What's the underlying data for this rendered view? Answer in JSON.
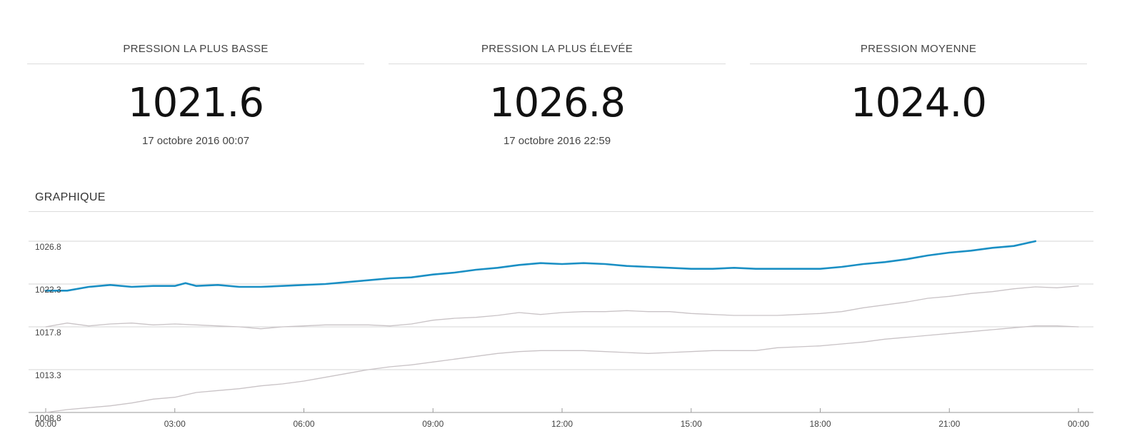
{
  "stats": [
    {
      "title": "PRESSION LA PLUS BASSE",
      "value": "1021.6",
      "date": "17 octobre 2016 00:07"
    },
    {
      "title": "PRESSION LA PLUS ÉLEVÉE",
      "value": "1026.8",
      "date": "17 octobre 2016 22:59"
    },
    {
      "title": "PRESSION MOYENNE",
      "value": "1024.0",
      "date": ""
    }
  ],
  "section_title": "GRAPHIQUE",
  "chart_data": {
    "type": "line",
    "ylim": [
      1008.8,
      1026.8
    ],
    "yticks": [
      "1026.8",
      "1022.3",
      "1017.8",
      "1013.3",
      "1008.8"
    ],
    "ytick_values": [
      1026.8,
      1022.3,
      1017.8,
      1013.3,
      1008.8
    ],
    "xlim": [
      0,
      24
    ],
    "xticks": [
      "00:00",
      "03:00",
      "06:00",
      "09:00",
      "12:00",
      "15:00",
      "18:00",
      "21:00",
      "00:00"
    ],
    "xtick_values": [
      0,
      3,
      6,
      9,
      12,
      15,
      18,
      21,
      24
    ],
    "grid": true,
    "colors": {
      "main": "#1a8fc4",
      "secondary": "#c9c3c6"
    },
    "series": [
      {
        "x": [
          0,
          0.5,
          1,
          1.5,
          2,
          2.5,
          3,
          3.25,
          3.5,
          4,
          4.5,
          5,
          5.5,
          6,
          6.5,
          7,
          7.5,
          8,
          8.5,
          9,
          9.5,
          10,
          10.5,
          11,
          11.5,
          12,
          12.5,
          13,
          13.5,
          14,
          14.5,
          15,
          15.5,
          16,
          16.5,
          17,
          17.5,
          18,
          18.5,
          19,
          19.5,
          20,
          20.5,
          21,
          21.5,
          22,
          22.5,
          23
        ],
        "y": [
          1021.6,
          1021.6,
          1022.0,
          1022.2,
          1022.0,
          1022.1,
          1022.1,
          1022.4,
          1022.1,
          1022.2,
          1022.0,
          1022.0,
          1022.1,
          1022.2,
          1022.3,
          1022.5,
          1022.7,
          1022.9,
          1023.0,
          1023.3,
          1023.5,
          1023.8,
          1024.0,
          1024.3,
          1024.5,
          1024.4,
          1024.5,
          1024.4,
          1024.2,
          1024.1,
          1024.0,
          1023.9,
          1023.9,
          1024.0,
          1023.9,
          1023.9,
          1023.9,
          1023.9,
          1024.1,
          1024.4,
          1024.6,
          1024.9,
          1025.3,
          1025.6,
          1025.8,
          1026.1,
          1026.3,
          1026.8
        ]
      },
      {
        "x": [
          0,
          0.5,
          1,
          1.5,
          2,
          2.5,
          3,
          3.5,
          4,
          4.5,
          5,
          5.5,
          6,
          6.5,
          7,
          7.5,
          8,
          8.5,
          9,
          9.5,
          10,
          10.5,
          11,
          11.5,
          12,
          12.5,
          13,
          13.5,
          14,
          14.5,
          15,
          15.5,
          16,
          16.5,
          17,
          17.5,
          18,
          18.5,
          19,
          19.5,
          20,
          20.5,
          21,
          21.5,
          22,
          22.5,
          23,
          23.5,
          24
        ],
        "y": [
          1017.8,
          1018.2,
          1017.9,
          1018.1,
          1018.2,
          1018.0,
          1018.1,
          1018.0,
          1017.9,
          1017.8,
          1017.6,
          1017.8,
          1017.9,
          1018.0,
          1018.0,
          1018.0,
          1017.9,
          1018.1,
          1018.5,
          1018.7,
          1018.8,
          1019.0,
          1019.3,
          1019.1,
          1019.3,
          1019.4,
          1019.4,
          1019.5,
          1019.4,
          1019.4,
          1019.2,
          1019.1,
          1019.0,
          1019.0,
          1019.0,
          1019.1,
          1019.2,
          1019.4,
          1019.8,
          1020.1,
          1020.4,
          1020.8,
          1021.0,
          1021.3,
          1021.5,
          1021.8,
          1022.0,
          1021.9,
          1022.1
        ]
      },
      {
        "x": [
          0,
          0.5,
          1,
          1.5,
          2,
          2.5,
          3,
          3.5,
          4,
          4.5,
          5,
          5.5,
          6,
          6.5,
          7,
          7.5,
          8,
          8.5,
          9,
          9.5,
          10,
          10.5,
          11,
          11.5,
          12,
          12.5,
          13,
          13.5,
          14,
          14.5,
          15,
          15.5,
          16,
          16.5,
          17,
          17.5,
          18,
          18.5,
          19,
          19.5,
          20,
          20.5,
          21,
          21.5,
          22,
          22.5,
          23,
          23.5,
          24
        ],
        "y": [
          1008.8,
          1009.1,
          1009.3,
          1009.5,
          1009.8,
          1010.2,
          1010.4,
          1010.9,
          1011.1,
          1011.3,
          1011.6,
          1011.8,
          1012.1,
          1012.5,
          1012.9,
          1013.3,
          1013.6,
          1013.8,
          1014.1,
          1014.4,
          1014.7,
          1015.0,
          1015.2,
          1015.3,
          1015.3,
          1015.3,
          1015.2,
          1015.1,
          1015.0,
          1015.1,
          1015.2,
          1015.3,
          1015.3,
          1015.3,
          1015.6,
          1015.7,
          1015.8,
          1016.0,
          1016.2,
          1016.5,
          1016.7,
          1016.9,
          1017.1,
          1017.3,
          1017.5,
          1017.7,
          1017.9,
          1017.9,
          1017.8
        ]
      }
    ]
  }
}
